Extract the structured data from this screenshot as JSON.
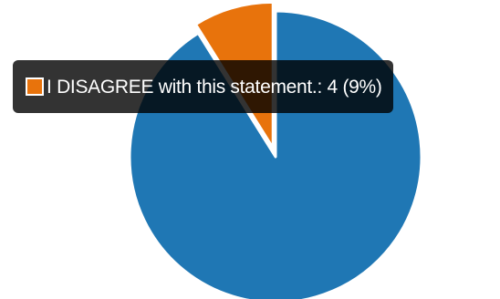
{
  "chart_data": {
    "type": "pie",
    "start_angle_deg": 0,
    "direction": "clockwise",
    "slices": [
      {
        "label": "",
        "value": 41,
        "color": "#1f77b4"
      },
      {
        "label": "I DISAGREE with this statement.",
        "value": 4,
        "percent": "9%",
        "color": "#e8730c",
        "hovered": true
      }
    ]
  },
  "tooltip": {
    "text": "I DISAGREE with this statement.: 4 (9%)",
    "swatch_color": "#e8730c"
  }
}
